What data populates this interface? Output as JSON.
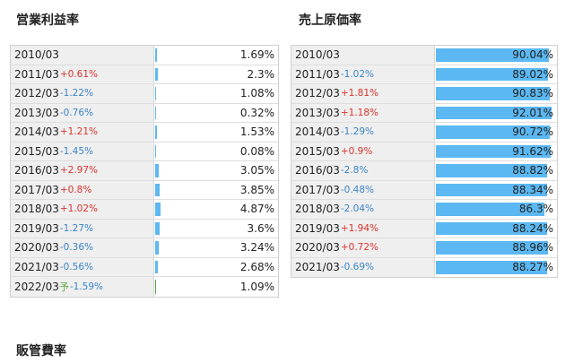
{
  "left": {
    "title": "営業利益率",
    "rows": [
      {
        "year": "2010/03",
        "change": "",
        "dir": "",
        "value": "1.69%",
        "pct": 1.69
      },
      {
        "year": "2011/03",
        "change": "+0.61%",
        "dir": "pos",
        "value": "2.3%",
        "pct": 2.3
      },
      {
        "year": "2012/03",
        "change": "-1.22%",
        "dir": "neg",
        "value": "1.08%",
        "pct": 1.08
      },
      {
        "year": "2013/03",
        "change": "-0.76%",
        "dir": "neg",
        "value": "0.32%",
        "pct": 0.32
      },
      {
        "year": "2014/03",
        "change": "+1.21%",
        "dir": "pos",
        "value": "1.53%",
        "pct": 1.53
      },
      {
        "year": "2015/03",
        "change": "-1.45%",
        "dir": "neg",
        "value": "0.08%",
        "pct": 0.08
      },
      {
        "year": "2016/03",
        "change": "+2.97%",
        "dir": "pos",
        "value": "3.05%",
        "pct": 3.05
      },
      {
        "year": "2017/03",
        "change": "+0.8%",
        "dir": "pos",
        "value": "3.85%",
        "pct": 3.85
      },
      {
        "year": "2018/03",
        "change": "+1.02%",
        "dir": "pos",
        "value": "4.87%",
        "pct": 4.87
      },
      {
        "year": "2019/03",
        "change": "-1.27%",
        "dir": "neg",
        "value": "3.6%",
        "pct": 3.6
      },
      {
        "year": "2020/03",
        "change": "-0.36%",
        "dir": "neg",
        "value": "3.24%",
        "pct": 3.24
      },
      {
        "year": "2021/03",
        "change": "-0.56%",
        "dir": "neg",
        "value": "2.68%",
        "pct": 2.68
      },
      {
        "year": "2022/03",
        "forecast": "予",
        "change": "-1.59%",
        "dir": "neg",
        "value": "1.09%",
        "pct": 1.09,
        "green": true
      }
    ]
  },
  "right": {
    "title": "売上原価率",
    "rows": [
      {
        "year": "2010/03",
        "change": "",
        "dir": "",
        "value": "90.04%",
        "pct": 90.04
      },
      {
        "year": "2011/03",
        "change": "-1.02%",
        "dir": "neg",
        "value": "89.02%",
        "pct": 89.02
      },
      {
        "year": "2012/03",
        "change": "+1.81%",
        "dir": "pos",
        "value": "90.83%",
        "pct": 90.83
      },
      {
        "year": "2013/03",
        "change": "+1.18%",
        "dir": "pos",
        "value": "92.01%",
        "pct": 92.01
      },
      {
        "year": "2014/03",
        "change": "-1.29%",
        "dir": "neg",
        "value": "90.72%",
        "pct": 90.72
      },
      {
        "year": "2015/03",
        "change": "+0.9%",
        "dir": "pos",
        "value": "91.62%",
        "pct": 91.62
      },
      {
        "year": "2016/03",
        "change": "-2.8%",
        "dir": "neg",
        "value": "88.82%",
        "pct": 88.82
      },
      {
        "year": "2017/03",
        "change": "-0.48%",
        "dir": "neg",
        "value": "88.34%",
        "pct": 88.34
      },
      {
        "year": "2018/03",
        "change": "-2.04%",
        "dir": "neg",
        "value": "86.3%",
        "pct": 86.3
      },
      {
        "year": "2019/03",
        "change": "+1.94%",
        "dir": "pos",
        "value": "88.24%",
        "pct": 88.24
      },
      {
        "year": "2020/03",
        "change": "+0.72%",
        "dir": "pos",
        "value": "88.96%",
        "pct": 88.96
      },
      {
        "year": "2021/03",
        "change": "-0.69%",
        "dir": "neg",
        "value": "88.27%",
        "pct": 88.27
      }
    ]
  },
  "bottom": {
    "title": "販管費率"
  },
  "colors": {
    "bar": "#5cb8f2",
    "forecast_bar": "#55aa44",
    "positive": "#d9342b",
    "negative": "#3b86c8"
  }
}
